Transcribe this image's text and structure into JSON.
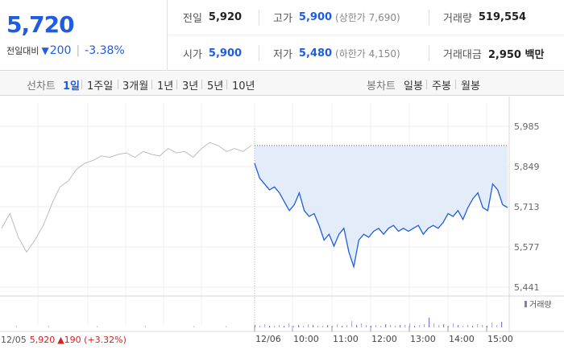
{
  "quote": {
    "price": "5,720",
    "change_label": "전일대비",
    "change_arrow": "▼",
    "change_value": "200",
    "change_percent": "-3.38%"
  },
  "stats": {
    "prev_close_label": "전일",
    "prev_close": "5,920",
    "high_label": "고가",
    "high": "5,900",
    "upper_limit": "(상한가 7,690)",
    "volume_label": "거래량",
    "volume": "519,554",
    "open_label": "시가",
    "open": "5,900",
    "low_label": "저가",
    "low": "5,480",
    "lower_limit": "(하한가 4,150)",
    "amount_label": "거래대금",
    "amount": "2,950 백만"
  },
  "toolbar": {
    "line_label": "선차트",
    "line_periods": [
      "1일",
      "1주일",
      "3개월",
      "1년",
      "3년",
      "5년",
      "10년"
    ],
    "candle_label": "봉차트",
    "candle_periods": [
      "일봉",
      "주봉",
      "월봉"
    ]
  },
  "colors": {
    "accent": "#1f5de0",
    "down": "#1f5de0",
    "up": "#d61f1f",
    "prev_day_line": "#bdbdbd",
    "fill": "#e3edfa"
  },
  "chart_data": {
    "type": "line",
    "y_ticks": [
      "5,985",
      "5,849",
      "5,713",
      "5,577",
      "5,441"
    ],
    "ylim": [
      5441,
      5985
    ],
    "grid": true,
    "volume_legend": "거래량",
    "x_ticks": [
      "12/06",
      "10:00",
      "11:00",
      "12:00",
      "13:00",
      "14:00",
      "15:00"
    ],
    "prev_day": {
      "date": "12/05",
      "close": "5,920",
      "change": "▲190 (+3.32%)",
      "values": [
        5640,
        5690,
        5610,
        5560,
        5600,
        5650,
        5720,
        5780,
        5800,
        5840,
        5860,
        5870,
        5885,
        5880,
        5890,
        5895,
        5880,
        5900,
        5890,
        5885,
        5910,
        5895,
        5900,
        5880,
        5910,
        5930,
        5920,
        5900,
        5910,
        5900,
        5920
      ]
    },
    "series": [
      {
        "values": [
          5860,
          5810,
          5790,
          5770,
          5780,
          5760,
          5730,
          5700,
          5720,
          5760,
          5700,
          5680,
          5690,
          5650,
          5600,
          5620,
          5580,
          5620,
          5640,
          5560,
          5510,
          5600,
          5620,
          5610,
          5630,
          5640,
          5620,
          5640,
          5650,
          5630,
          5640,
          5630,
          5640,
          5650,
          5620,
          5640,
          5650,
          5640,
          5660,
          5690,
          5680,
          5700,
          5670,
          5710,
          5740,
          5760,
          5710,
          5700,
          5790,
          5770,
          5720,
          5710
        ]
      }
    ],
    "prev_close_value": 5920
  }
}
